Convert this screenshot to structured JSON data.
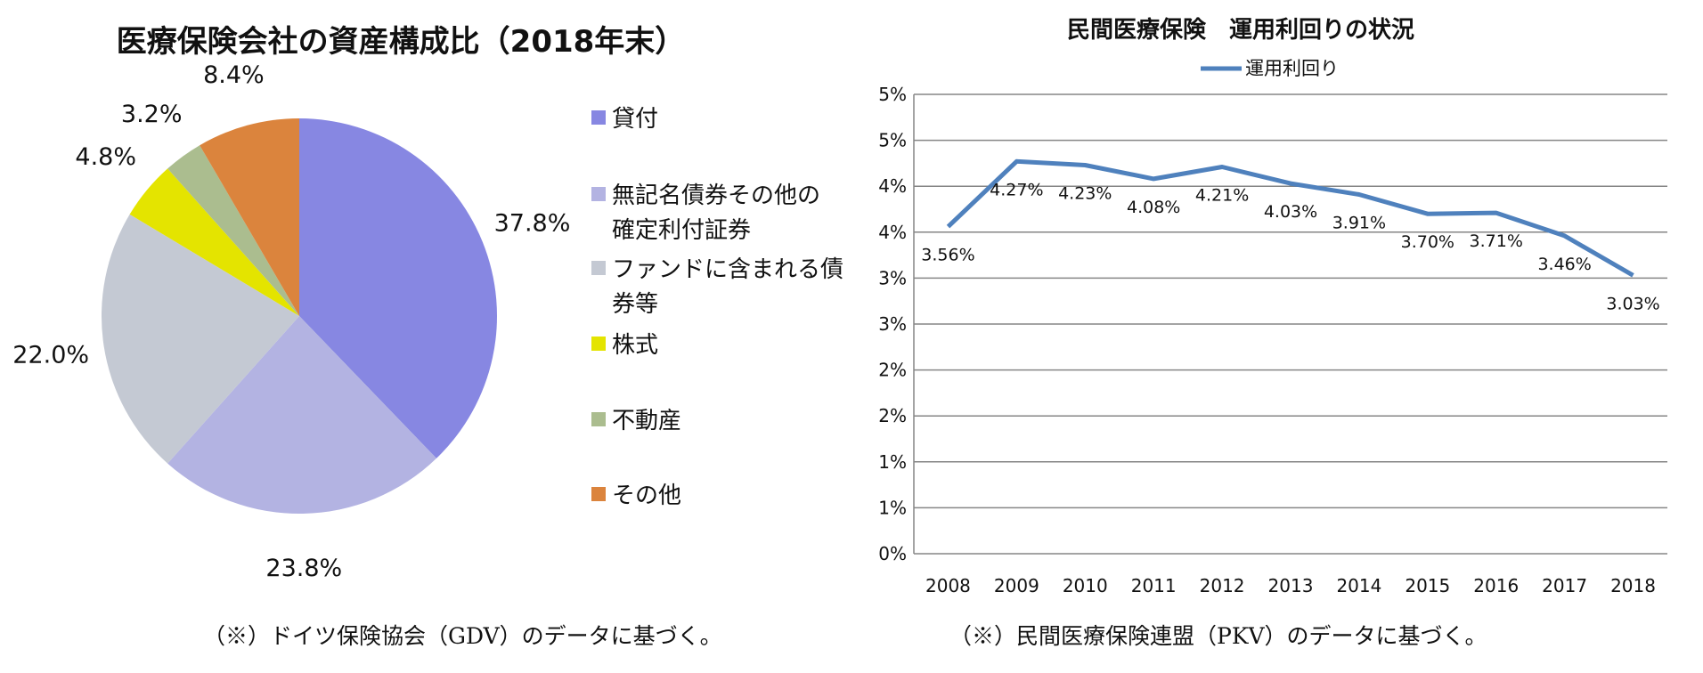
{
  "chart_data": [
    {
      "type": "pie",
      "title": "医療保険会社の資産構成比（2018年末）",
      "slices": [
        {
          "name": "貸付",
          "name_lines": [
            "貸付"
          ],
          "value": 37.8,
          "label": "37.8%",
          "color": "#8787e2"
        },
        {
          "name": "無記名債券その他の確定利付証券",
          "name_lines": [
            "無記名債券その他の",
            "確定利付証券"
          ],
          "value": 23.8,
          "label": "23.8%",
          "color": "#b3b3e2"
        },
        {
          "name": "ファンドに含まれる債券等",
          "name_lines": [
            "ファンドに含まれる債",
            "券等"
          ],
          "value": 22.0,
          "label": "22.0%",
          "color": "#c4c9d3"
        },
        {
          "name": "株式",
          "name_lines": [
            "株式"
          ],
          "value": 4.8,
          "label": "4.8%",
          "color": "#e4e400"
        },
        {
          "name": "不動産",
          "name_lines": [
            "不動産"
          ],
          "value": 3.2,
          "label": "3.2%",
          "color": "#abbd8f"
        },
        {
          "name": "その他",
          "name_lines": [
            "その他"
          ],
          "value": 8.4,
          "label": "8.4%",
          "color": "#db843d"
        }
      ],
      "legend_position": "right"
    },
    {
      "type": "line",
      "title": "民間医療保険　運用利回りの状況",
      "categories": [
        "2008",
        "2009",
        "2010",
        "2011",
        "2012",
        "2013",
        "2014",
        "2015",
        "2016",
        "2017",
        "2018"
      ],
      "series": [
        {
          "name": "運用利回り",
          "color": "#4f81bd",
          "values": [
            3.56,
            4.27,
            4.23,
            4.08,
            4.21,
            4.03,
            3.91,
            3.7,
            3.71,
            3.46,
            3.03
          ],
          "value_labels": [
            "3.56%",
            "4.27%",
            "4.23%",
            "4.08%",
            "4.21%",
            "4.03%",
            "3.91%",
            "3.70%",
            "3.71%",
            "3.46%",
            "3.03%"
          ]
        }
      ],
      "ylim": [
        0,
        5
      ],
      "y_tick_labels": [
        "0%",
        "1%",
        "1%",
        "2%",
        "2%",
        "3%",
        "3%",
        "4%",
        "4%",
        "5%",
        "5%"
      ],
      "grid": true,
      "legend_position": "top"
    }
  ],
  "notes": {
    "left": "（※）ドイツ保険協会（GDV）のデータに基づく。",
    "right": "（※）民間医療保険連盟（PKV）のデータに基づく。"
  }
}
